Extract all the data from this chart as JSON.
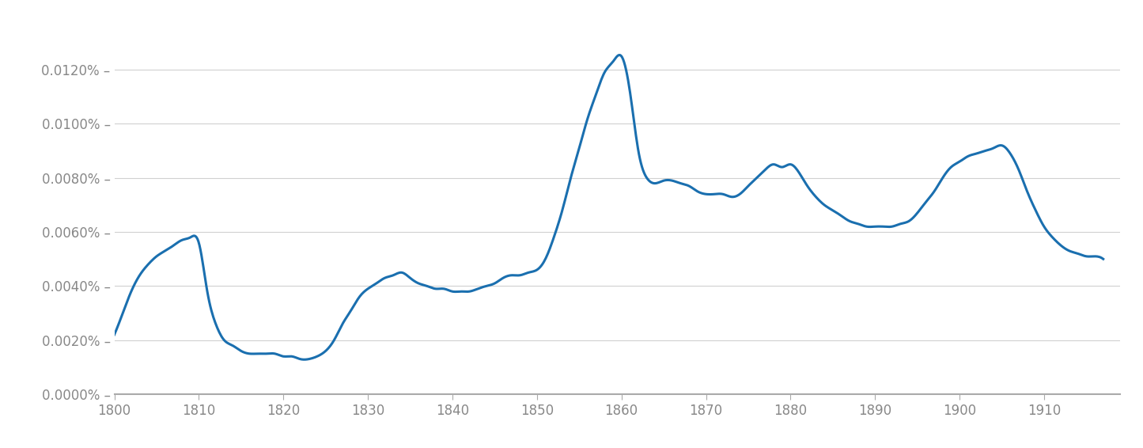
{
  "title": "",
  "xlabel": "",
  "ylabel": "",
  "xlim": [
    1800,
    1919
  ],
  "ylim": [
    0,
    0.0001375
  ],
  "xticks": [
    1800,
    1810,
    1820,
    1830,
    1840,
    1850,
    1860,
    1870,
    1880,
    1890,
    1900,
    1910
  ],
  "yticks": [
    0,
    2e-05,
    4e-05,
    6e-05,
    8e-05,
    0.0001,
    0.00012
  ],
  "ytick_labels": [
    "0.0000%",
    "0.0020%",
    "0.0040%",
    "0.0060%",
    "0.0080%",
    "0.0100%",
    "0.0120%"
  ],
  "line_color": "#1a6faf",
  "line_width": 2.2,
  "background_color": "#ffffff",
  "grid_color": "#d0d0d0",
  "axis_color": "#aaaaaa",
  "label_color": "#888888",
  "data_points": [
    [
      1800,
      2.2e-05
    ],
    [
      1801,
      3e-05
    ],
    [
      1802,
      3.8e-05
    ],
    [
      1803,
      4.4e-05
    ],
    [
      1804,
      4.8e-05
    ],
    [
      1805,
      5.1e-05
    ],
    [
      1806,
      5.3e-05
    ],
    [
      1807,
      5.5e-05
    ],
    [
      1808,
      5.7e-05
    ],
    [
      1809,
      5.8e-05
    ],
    [
      1810,
      5.6e-05
    ],
    [
      1811,
      3.8e-05
    ],
    [
      1812,
      2.6e-05
    ],
    [
      1813,
      2e-05
    ],
    [
      1814,
      1.8e-05
    ],
    [
      1815,
      1.6e-05
    ],
    [
      1816,
      1.5e-05
    ],
    [
      1817,
      1.5e-05
    ],
    [
      1818,
      1.5e-05
    ],
    [
      1819,
      1.5e-05
    ],
    [
      1820,
      1.4e-05
    ],
    [
      1821,
      1.4e-05
    ],
    [
      1822,
      1.3e-05
    ],
    [
      1823,
      1.3e-05
    ],
    [
      1824,
      1.4e-05
    ],
    [
      1825,
      1.6e-05
    ],
    [
      1826,
      2e-05
    ],
    [
      1827,
      2.6e-05
    ],
    [
      1828,
      3.1e-05
    ],
    [
      1829,
      3.6e-05
    ],
    [
      1830,
      3.9e-05
    ],
    [
      1831,
      4.1e-05
    ],
    [
      1832,
      4.3e-05
    ],
    [
      1833,
      4.4e-05
    ],
    [
      1834,
      4.5e-05
    ],
    [
      1835,
      4.3e-05
    ],
    [
      1836,
      4.1e-05
    ],
    [
      1837,
      4e-05
    ],
    [
      1838,
      3.9e-05
    ],
    [
      1839,
      3.9e-05
    ],
    [
      1840,
      3.8e-05
    ],
    [
      1841,
      3.8e-05
    ],
    [
      1842,
      3.8e-05
    ],
    [
      1843,
      3.9e-05
    ],
    [
      1844,
      4e-05
    ],
    [
      1845,
      4.1e-05
    ],
    [
      1846,
      4.3e-05
    ],
    [
      1847,
      4.4e-05
    ],
    [
      1848,
      4.4e-05
    ],
    [
      1849,
      4.5e-05
    ],
    [
      1850,
      4.6e-05
    ],
    [
      1851,
      5e-05
    ],
    [
      1852,
      5.8e-05
    ],
    [
      1853,
      6.8e-05
    ],
    [
      1854,
      8e-05
    ],
    [
      1855,
      9.1e-05
    ],
    [
      1856,
      0.000102
    ],
    [
      1857,
      0.000111
    ],
    [
      1858,
      0.000119
    ],
    [
      1859,
      0.000123
    ],
    [
      1860,
      0.000125
    ],
    [
      1861,
      0.000112
    ],
    [
      1862,
      9e-05
    ],
    [
      1863,
      8e-05
    ],
    [
      1864,
      7.8e-05
    ],
    [
      1865,
      7.9e-05
    ],
    [
      1866,
      7.9e-05
    ],
    [
      1867,
      7.8e-05
    ],
    [
      1868,
      7.7e-05
    ],
    [
      1869,
      7.5e-05
    ],
    [
      1870,
      7.4e-05
    ],
    [
      1871,
      7.4e-05
    ],
    [
      1872,
      7.4e-05
    ],
    [
      1873,
      7.3e-05
    ],
    [
      1874,
      7.4e-05
    ],
    [
      1875,
      7.7e-05
    ],
    [
      1876,
      8e-05
    ],
    [
      1877,
      8.3e-05
    ],
    [
      1878,
      8.5e-05
    ],
    [
      1879,
      8.4e-05
    ],
    [
      1880,
      8.5e-05
    ],
    [
      1881,
      8.2e-05
    ],
    [
      1882,
      7.7e-05
    ],
    [
      1883,
      7.3e-05
    ],
    [
      1884,
      7e-05
    ],
    [
      1885,
      6.8e-05
    ],
    [
      1886,
      6.6e-05
    ],
    [
      1887,
      6.4e-05
    ],
    [
      1888,
      6.3e-05
    ],
    [
      1889,
      6.2e-05
    ],
    [
      1890,
      6.2e-05
    ],
    [
      1891,
      6.2e-05
    ],
    [
      1892,
      6.2e-05
    ],
    [
      1893,
      6.3e-05
    ],
    [
      1894,
      6.4e-05
    ],
    [
      1895,
      6.7e-05
    ],
    [
      1896,
      7.1e-05
    ],
    [
      1897,
      7.5e-05
    ],
    [
      1898,
      8e-05
    ],
    [
      1899,
      8.4e-05
    ],
    [
      1900,
      8.6e-05
    ],
    [
      1901,
      8.8e-05
    ],
    [
      1902,
      8.9e-05
    ],
    [
      1903,
      9e-05
    ],
    [
      1904,
      9.1e-05
    ],
    [
      1905,
      9.2e-05
    ],
    [
      1906,
      8.9e-05
    ],
    [
      1907,
      8.3e-05
    ],
    [
      1908,
      7.5e-05
    ],
    [
      1909,
      6.8e-05
    ],
    [
      1910,
      6.2e-05
    ],
    [
      1911,
      5.8e-05
    ],
    [
      1912,
      5.5e-05
    ],
    [
      1913,
      5.3e-05
    ],
    [
      1914,
      5.2e-05
    ],
    [
      1915,
      5.1e-05
    ],
    [
      1916,
      5.1e-05
    ],
    [
      1917,
      5e-05
    ]
  ]
}
